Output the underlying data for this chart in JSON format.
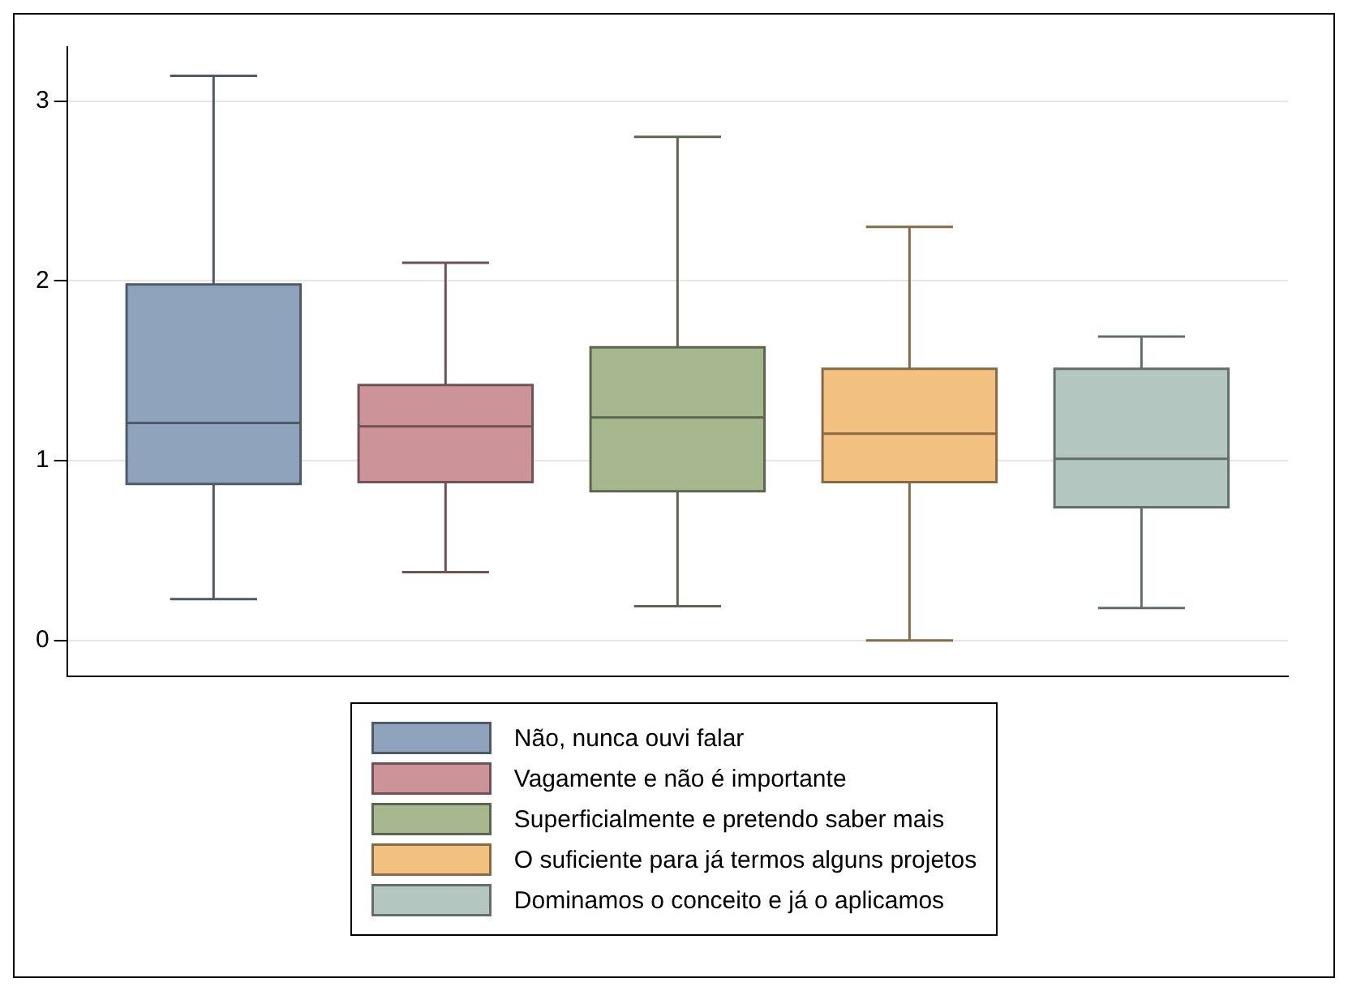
{
  "chart_data": {
    "type": "box",
    "categories": [
      null
    ],
    "ylim": [
      -0.2,
      3.3
    ],
    "yticks": [
      0,
      1,
      2,
      3
    ],
    "grid": "y",
    "legend": "bottom",
    "tick_labels": "y",
    "series": [
      {
        "name": "Não, nunca ouvi falar",
        "color": "#8ea3bb",
        "boxes": [
          {
            "low": 0.23,
            "q1": 0.87,
            "median": 1.21,
            "q3": 1.98,
            "high": 3.14
          }
        ]
      },
      {
        "name": "Vagamente e não é importante",
        "color": "#cc9499",
        "boxes": [
          {
            "low": 0.38,
            "q1": 0.88,
            "median": 1.19,
            "q3": 1.42,
            "high": 2.1
          }
        ]
      },
      {
        "name": "Superficialmente e pretendo saber mais",
        "color": "#a8b88e",
        "boxes": [
          {
            "low": 0.19,
            "q1": 0.83,
            "median": 1.24,
            "q3": 1.63,
            "high": 2.8
          }
        ]
      },
      {
        "name": "O suficiente para já termos alguns projetos",
        "color": "#f2c07f",
        "boxes": [
          {
            "low": 0,
            "q1": 0.88,
            "median": 1.15,
            "q3": 1.51,
            "high": 2.3
          }
        ]
      },
      {
        "name": "Dominamos o conceito e já o aplicamos",
        "color": "#b4c6c0",
        "boxes": [
          {
            "low": 0.18,
            "q1": 0.74,
            "median": 1.01,
            "q3": 1.51,
            "high": 1.69
          }
        ]
      }
    ]
  }
}
